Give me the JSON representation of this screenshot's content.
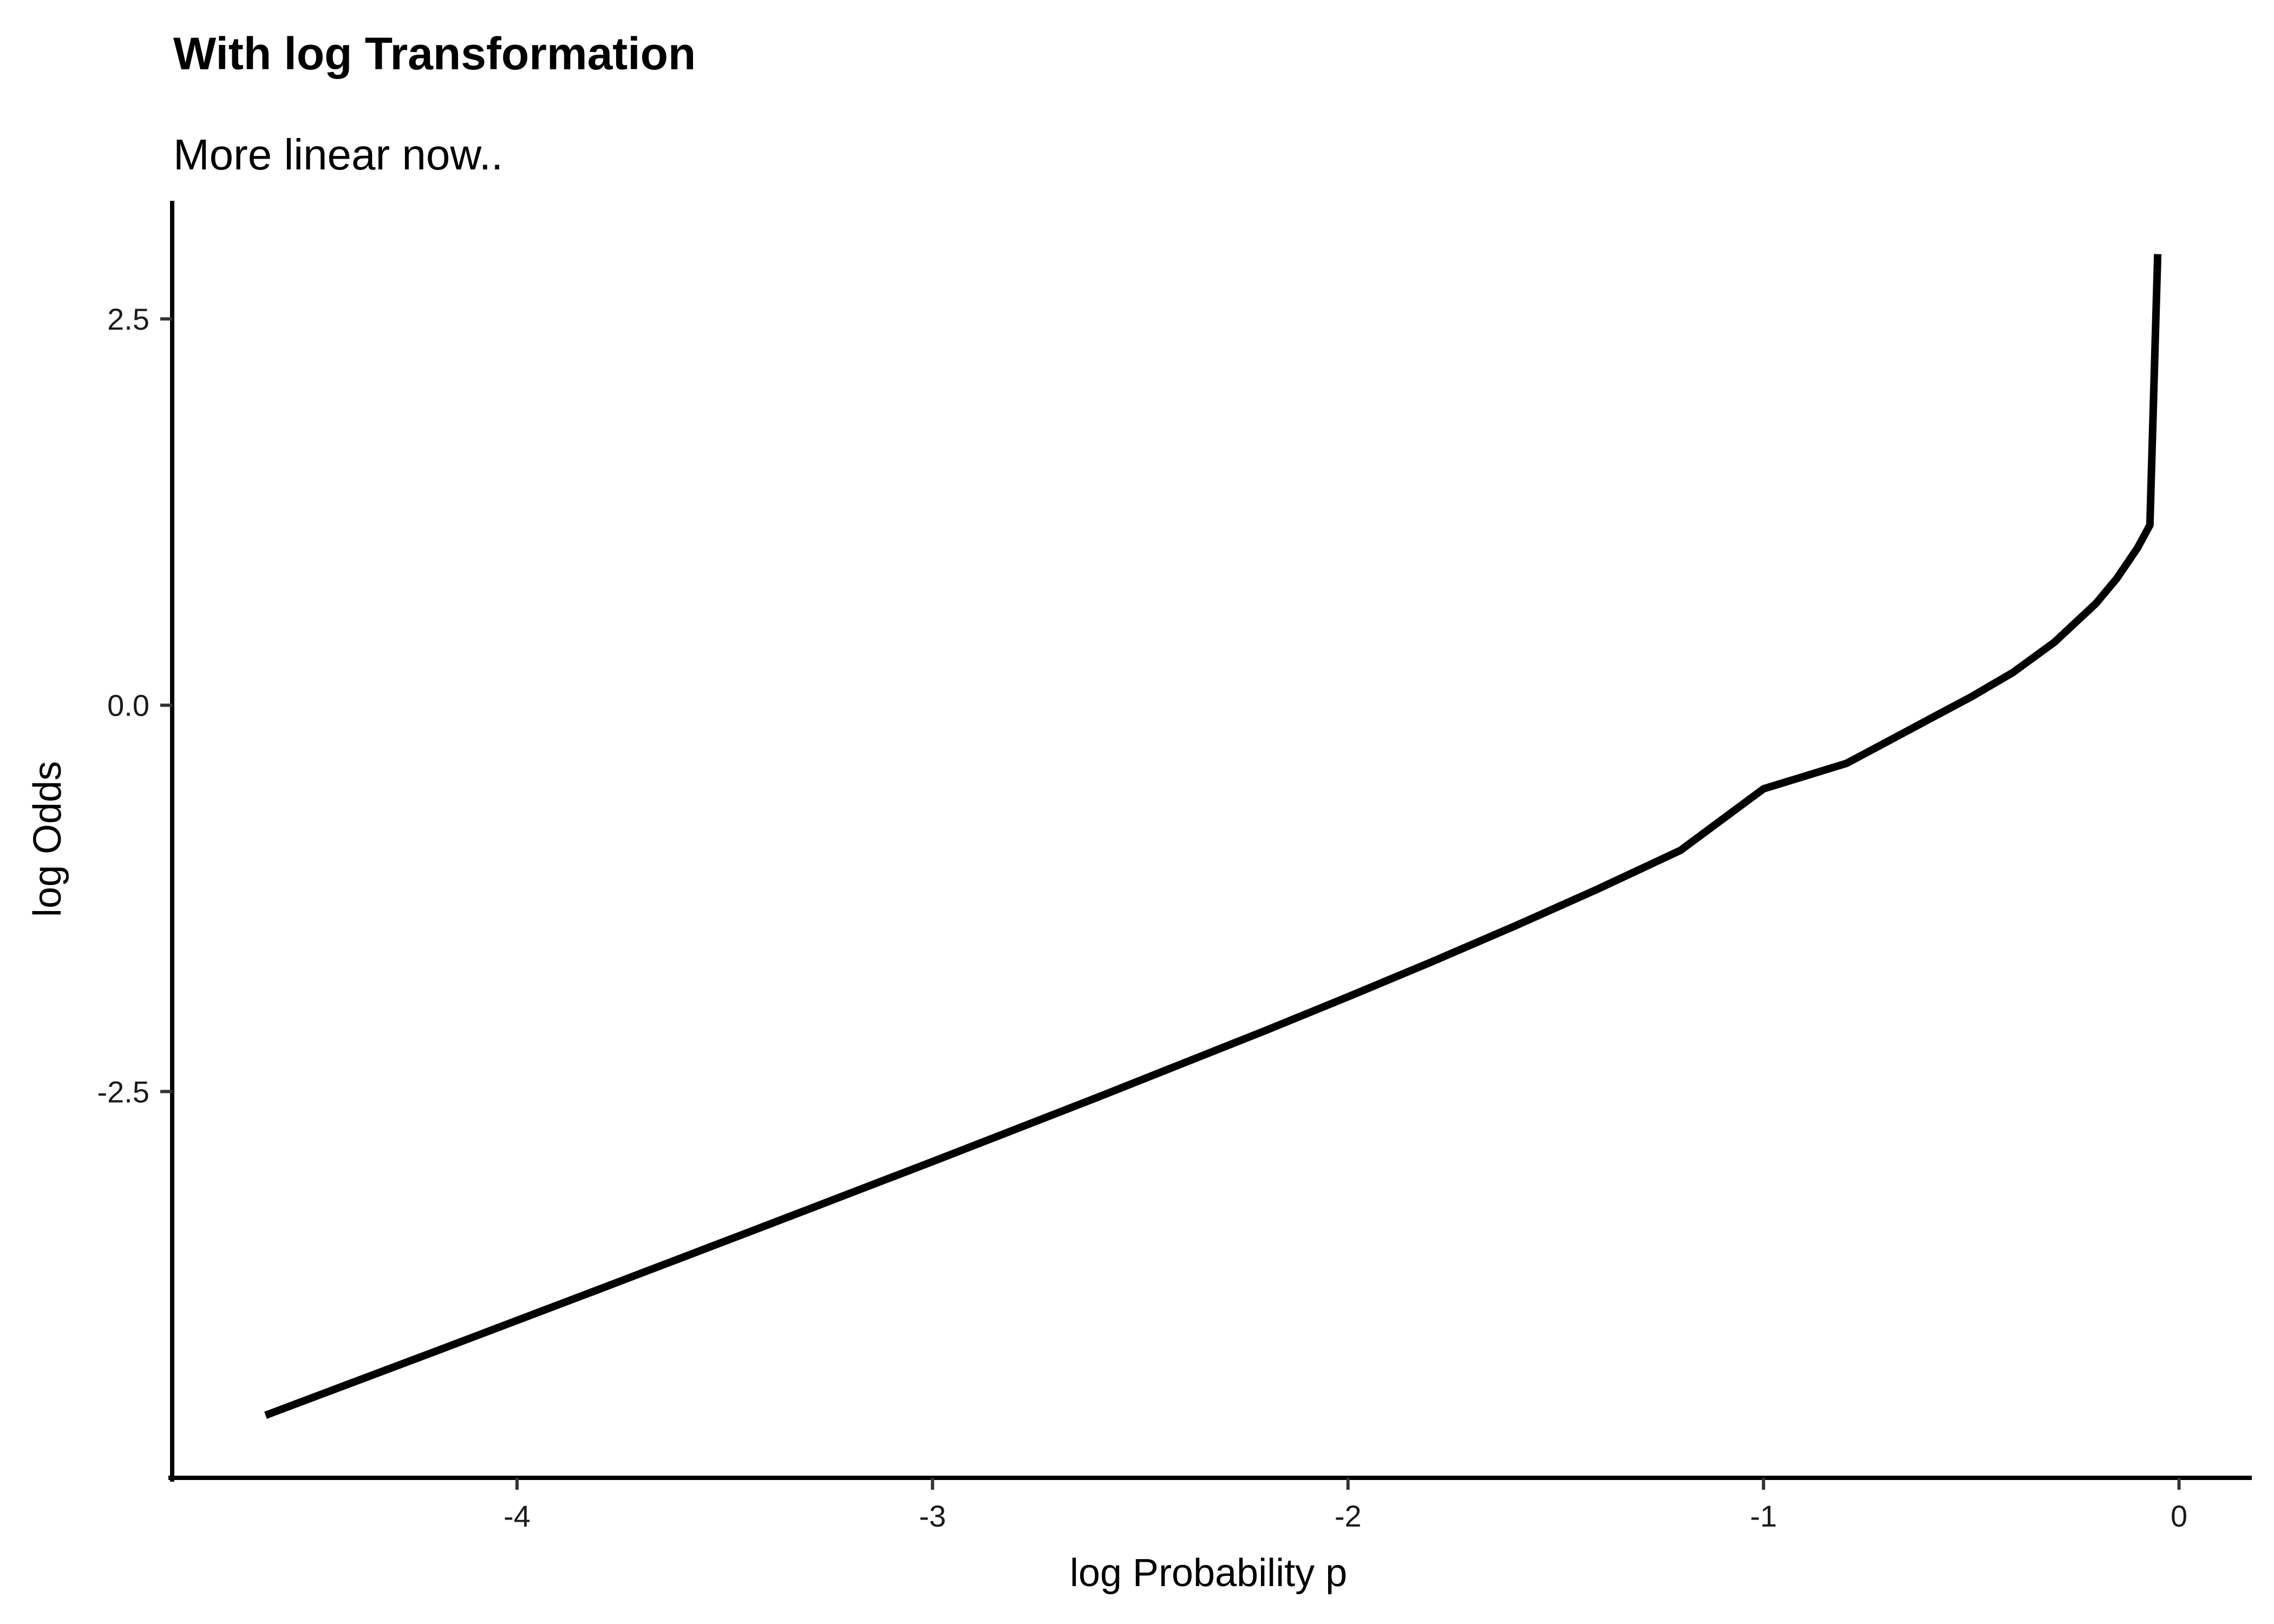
{
  "chart_data": {
    "type": "line",
    "title": "With log Transformation",
    "subtitle": "More linear now..",
    "xlabel": "log Probability p",
    "ylabel": "log Odds",
    "xlim": [
      -4.83,
      0.17
    ],
    "ylim": [
      -5.0,
      3.25
    ],
    "x_ticks": [
      -4,
      -3,
      -2,
      -1,
      0
    ],
    "x_tick_labels": [
      "-4",
      "-3",
      "-2",
      "-1",
      "0"
    ],
    "y_ticks": [
      2.5,
      0.0,
      -2.5
    ],
    "y_tick_labels": [
      "2.5",
      "0.0",
      "-2.5"
    ],
    "grid": false,
    "line_color": "#000000",
    "series": [
      {
        "x": [
          -4.6052,
          -4.2,
          -3.8,
          -3.4,
          -3.0,
          -2.6,
          -2.2,
          -2.0,
          -1.8,
          -1.6,
          -1.4,
          -1.2,
          -1.0,
          -0.8,
          -0.6,
          -0.5,
          -0.4,
          -0.3,
          -0.2,
          -0.15,
          -0.1,
          -0.07,
          -0.0513
        ],
        "y": [
          -4.5951,
          -4.185,
          -3.777,
          -3.3665,
          -2.9533,
          -2.5346,
          -2.1068,
          -1.8872,
          -1.6625,
          -1.4311,
          -1.1911,
          -0.9396,
          -0.5413,
          -0.3762,
          -0.0888,
          0.0542,
          0.2115,
          0.4073,
          0.6584,
          0.8192,
          1.0171,
          1.1658,
          2.9194
        ]
      }
    ]
  }
}
